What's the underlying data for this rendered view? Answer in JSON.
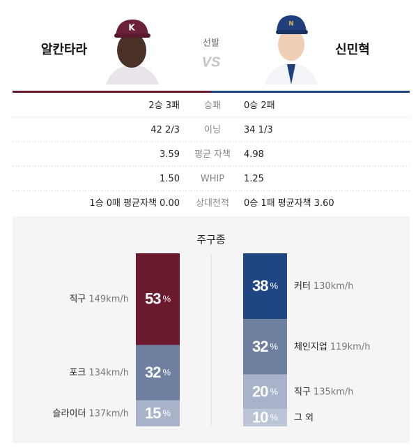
{
  "header": {
    "label": "선발",
    "vs": "VS",
    "left": {
      "name": "알칸타라"
    },
    "right": {
      "name": "신민혁"
    }
  },
  "stats": {
    "rows": [
      {
        "left": "2승 3패",
        "label": "승패",
        "right": "0승 2패"
      },
      {
        "left": "42 2/3",
        "label": "이닝",
        "right": "34 1/3"
      },
      {
        "left": "3.59",
        "label": "평균 자책",
        "right": "4.98"
      },
      {
        "left": "1.50",
        "label": "WHIP",
        "right": "1.25"
      },
      {
        "left": "1승 0패 평균자책 0.00",
        "label": "상대전적",
        "right": "0승 1패 평균자책 3.60"
      }
    ]
  },
  "pitch_mix": {
    "title": "주구종",
    "unit": "%",
    "left": [
      {
        "name": "직구",
        "speed": "149km/h",
        "value": 53,
        "color": "#6b1a2e"
      },
      {
        "name": "포크",
        "speed": "134km/h",
        "value": 32,
        "color": "#6f7fa0"
      },
      {
        "name": "슬라이더",
        "speed": "137km/h",
        "value": 15,
        "color": "#a8b3ca"
      }
    ],
    "right": [
      {
        "name": "커터",
        "speed": "130km/h",
        "value": 38,
        "color": "#1f4683"
      },
      {
        "name": "체인지업",
        "speed": "119km/h",
        "value": 32,
        "color": "#6f7fa0"
      },
      {
        "name": "직구",
        "speed": "135km/h",
        "value": 20,
        "color": "#a8b3ca"
      },
      {
        "name": "그 외",
        "value": 10,
        "color": "#bcc5d8"
      }
    ]
  }
}
